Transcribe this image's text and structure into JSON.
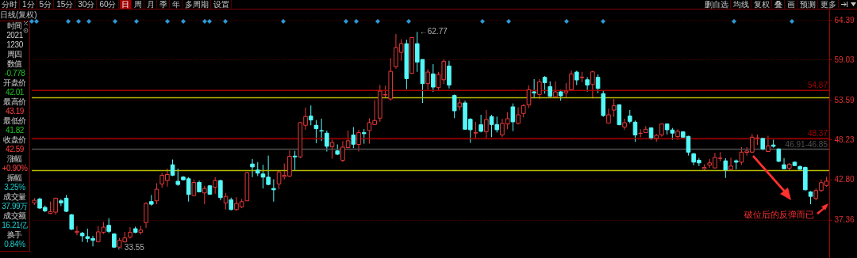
{
  "chart_data": {
    "type": "candlestick",
    "title": "日线(复权)",
    "annotations": [
      "分时",
      "1分",
      "5分",
      "15分",
      "30分",
      "60分",
      "日",
      "周",
      "月",
      "季",
      "年",
      "多周期",
      "设置",
      "删自选",
      "均线",
      "复权",
      "叠",
      "画",
      "预测",
      "更多",
      "时间",
      "2021",
      "1230",
      "周四",
      "数值",
      "-0.778",
      "开盘价",
      "42.01",
      "最高价",
      "43.19",
      "最低价",
      "41.82",
      "收盘价",
      "42.59",
      "涨幅",
      "+0.90%",
      "振幅",
      "3.25%",
      "成交量",
      "37.99万",
      "成交额",
      "16.21亿",
      "换手",
      "0.84%",
      "破位后的反弹而已",
      "←62.77",
      "←33.55"
    ],
    "categories": [
      null,
      null,
      null,
      null,
      null,
      null,
      null,
      null,
      null,
      null,
      null,
      null,
      null,
      null,
      null,
      null,
      null,
      null,
      null,
      null,
      null,
      null,
      null,
      null,
      null,
      null,
      null,
      null,
      null,
      null,
      null,
      null,
      null,
      null,
      null,
      null,
      null,
      null,
      null,
      null,
      null,
      null,
      null,
      null,
      null,
      null,
      null,
      null,
      null,
      null,
      null,
      null,
      null,
      null,
      null,
      null,
      null,
      null,
      null,
      null,
      null,
      null,
      null,
      null,
      null,
      null,
      null,
      null,
      null,
      null,
      null,
      null,
      null,
      null,
      null,
      null,
      null,
      null,
      null,
      null,
      null,
      null,
      null,
      null,
      null,
      null,
      null,
      null,
      null,
      null,
      null,
      null,
      null,
      null,
      null,
      null,
      null,
      null,
      null,
      null,
      null,
      null,
      null,
      null,
      null,
      null,
      null,
      null,
      null,
      null,
      null,
      null,
      null,
      null,
      null,
      null,
      null,
      null,
      null,
      null,
      null,
      null,
      null,
      null,
      null,
      null,
      null,
      null,
      null,
      null,
      null,
      null,
      null,
      null,
      null,
      null,
      null,
      null,
      null,
      null,
      null,
      null,
      null,
      null,
      null,
      null,
      null,
      null,
      null,
      null
    ],
    "ohlc": [
      [
        39.65,
        40.29,
        39.36,
        40.0
      ],
      [
        40.18,
        40.36,
        38.86,
        38.94
      ],
      [
        39.04,
        39.29,
        38.4,
        38.58
      ],
      [
        38.22,
        39.83,
        38.15,
        38.47
      ],
      [
        38.4,
        40.36,
        38.05,
        40.29
      ],
      [
        39.93,
        40.18,
        39.22,
        39.65
      ],
      [
        40.29,
        40.72,
        38.4,
        38.51
      ],
      [
        38.05,
        38.15,
        35.98,
        36.09
      ],
      [
        35.66,
        36.52,
        35.27,
        35.8
      ],
      [
        35.55,
        35.73,
        34.38,
        35.2
      ],
      [
        35.09,
        36.16,
        34.31,
        34.84
      ],
      [
        34.84,
        35.2,
        33.77,
        34.59
      ],
      [
        34.38,
        36.52,
        34.38,
        35.73
      ],
      [
        35.66,
        37.08,
        35.45,
        36.37
      ],
      [
        36.62,
        37.58,
        35.55,
        35.8
      ],
      [
        35.45,
        35.55,
        33.55,
        33.67
      ],
      [
        33.67,
        34.91,
        33.6,
        34.59
      ],
      [
        34.38,
        35.73,
        34.31,
        34.91
      ],
      [
        35.02,
        36.37,
        34.84,
        35.66
      ],
      [
        36.16,
        36.44,
        35.55,
        35.66
      ],
      [
        35.66,
        36.52,
        35.38,
        35.98
      ],
      [
        36.98,
        39.72,
        36.27,
        39.58
      ],
      [
        39.83,
        40.72,
        39.29,
        39.47
      ],
      [
        39.93,
        42.32,
        39.47,
        41.5
      ],
      [
        42.21,
        43.74,
        41.71,
        43.39
      ],
      [
        42.67,
        44.28,
        41.86,
        43.49
      ],
      [
        44.81,
        45.52,
        43.28,
        43.39
      ],
      [
        42.57,
        44.28,
        41.96,
        42.14
      ],
      [
        43.14,
        43.28,
        42.67,
        42.78
      ],
      [
        42.92,
        43.14,
        39.83,
        40.79
      ],
      [
        40.64,
        42.78,
        40.54,
        42.42
      ],
      [
        42.42,
        42.67,
        41.07,
        41.14
      ],
      [
        41.0,
        41.96,
        39.47,
        41.6
      ],
      [
        41.96,
        42.06,
        40.78,
        40.82
      ],
      [
        41.78,
        43.13,
        40.89,
        42.67
      ],
      [
        42.67,
        42.78,
        40.0,
        40.36
      ],
      [
        39.64,
        41.0,
        38.75,
        40.53
      ],
      [
        40.07,
        40.36,
        38.65,
        38.75
      ],
      [
        38.75,
        40.43,
        38.58,
        39.57
      ],
      [
        39.11,
        40.18,
        38.93,
        39.82
      ],
      [
        39.93,
        43.84,
        39.93,
        43.74
      ],
      [
        44.91,
        45.59,
        43.13,
        44.52
      ],
      [
        44.09,
        45.16,
        43.28,
        43.67
      ],
      [
        43.56,
        44.81,
        41.6,
        43.13
      ],
      [
        43.13,
        46.05,
        42.03,
        42.14
      ],
      [
        41.6,
        42.85,
        39.82,
        41.42
      ],
      [
        42.21,
        43.99,
        41.5,
        43.84
      ],
      [
        43.2,
        44.98,
        42.85,
        43.38
      ],
      [
        43.28,
        46.76,
        43.13,
        45.95
      ],
      [
        45.98,
        46.69,
        44.09,
        45.87
      ],
      [
        45.87,
        50.6,
        45.7,
        50.5
      ],
      [
        50.15,
        52.53,
        49.54,
        51.32
      ],
      [
        51.39,
        52.82,
        50.15,
        50.86
      ],
      [
        50.15,
        50.86,
        47.73,
        49.68
      ],
      [
        49.43,
        51.04,
        48.01,
        49.36
      ],
      [
        49.08,
        49.43,
        46.59,
        47.3
      ],
      [
        47.23,
        48.19,
        45.62,
        47.83
      ],
      [
        46.69,
        47.55,
        46.12,
        46.23
      ],
      [
        45.41,
        48.01,
        45.16,
        47.19
      ],
      [
        47.12,
        49.43,
        47.05,
        48.05
      ],
      [
        48.83,
        49.9,
        47.05,
        47.58
      ],
      [
        47.55,
        49.54,
        46.59,
        49.15
      ],
      [
        49.15,
        49.61,
        47.65,
        49.01
      ],
      [
        49.43,
        51.11,
        47.65,
        50.5
      ],
      [
        50.25,
        53.53,
        50.22,
        50.79
      ],
      [
        51.11,
        55.59,
        50.61,
        54.77
      ],
      [
        54.24,
        55.49,
        53.81,
        54.31
      ],
      [
        53.71,
        59.22,
        53.46,
        57.44
      ],
      [
        58.05,
        62.5,
        57.8,
        60.65
      ],
      [
        60.01,
        61.79,
        58.87,
        61.18
      ],
      [
        61.18,
        61.72,
        55.02,
        56.45
      ],
      [
        57.16,
        62.0,
        57.09,
        62.0
      ],
      [
        61.18,
        62.77,
        57.37,
        58.69
      ],
      [
        59.05,
        59.05,
        53.17,
        55.77
      ],
      [
        55.77,
        57.73,
        54.95,
        57.34
      ],
      [
        57.09,
        58.41,
        54.67,
        55.31
      ],
      [
        55.24,
        57.37,
        54.77,
        57.02
      ],
      [
        56.3,
        59.05,
        55.74,
        58.8
      ],
      [
        58.16,
        58.87,
        55.13,
        55.59
      ],
      [
        54.17,
        54.31,
        51.11,
        52.1
      ],
      [
        52.64,
        53.71,
        52.18,
        53.17
      ],
      [
        53.17,
        53.46,
        49.54,
        49.61
      ],
      [
        50.96,
        51.11,
        47.76,
        49.54
      ],
      [
        49.08,
        50.61,
        48.37,
        49.18
      ],
      [
        50.22,
        51.57,
        49.18,
        49.33
      ],
      [
        49.26,
        52.21,
        48.29,
        50.93
      ],
      [
        51.32,
        51.57,
        48.54,
        50.25
      ],
      [
        50.25,
        51.32,
        49.18,
        49.54
      ],
      [
        48.83,
        51.04,
        48.54,
        50.4
      ],
      [
        50.32,
        51.93,
        49.61,
        51.04
      ],
      [
        52.64,
        53.1,
        49.36,
        50.61
      ],
      [
        50.4,
        52.57,
        50.25,
        51.57
      ],
      [
        51.75,
        52.99,
        51.21,
        52.82
      ],
      [
        52.89,
        55.56,
        52.46,
        54.95
      ],
      [
        54.67,
        56.38,
        53.81,
        54.52
      ],
      [
        54.31,
        56.38,
        53.71,
        56.02
      ],
      [
        56.63,
        56.8,
        54.42,
        55.91
      ],
      [
        55.38,
        56.09,
        53.96,
        54.06
      ],
      [
        53.99,
        56.09,
        53.88,
        54.67
      ],
      [
        54.67,
        54.95,
        53.46,
        54.13
      ],
      [
        54.52,
        55.84,
        53.96,
        54.77
      ],
      [
        54.95,
        57.55,
        54.88,
        57.09
      ],
      [
        57.34,
        57.52,
        55.59,
        56.27
      ],
      [
        56.59,
        57.37,
        55.95,
        56.66
      ],
      [
        56.3,
        56.66,
        54.7,
        55.59
      ],
      [
        55.66,
        57.52,
        53.78,
        57.37
      ],
      [
        56.63,
        57.02,
        54.49,
        55.13
      ],
      [
        54.42,
        54.77,
        51.29,
        51.46
      ],
      [
        50.43,
        52.39,
        50.43,
        51.57
      ],
      [
        52.21,
        53.71,
        51.29,
        52.82
      ],
      [
        52.92,
        52.99,
        50.15,
        50.22
      ],
      [
        49.9,
        51.04,
        49.54,
        50.5
      ],
      [
        51.39,
        52.21,
        50.4,
        50.68
      ],
      [
        50.57,
        50.79,
        47.9,
        48.83
      ],
      [
        49.04,
        49.61,
        48.54,
        49.08
      ],
      [
        49.15,
        50.04,
        49.15,
        49.61
      ],
      [
        49.79,
        49.79,
        48.19,
        48.44
      ],
      [
        48.37,
        48.97,
        47.94,
        48.79
      ],
      [
        48.83,
        50.4,
        48.62,
        50.32
      ],
      [
        50.32,
        50.4,
        48.9,
        49.54
      ],
      [
        49.51,
        49.79,
        48.19,
        49.08
      ],
      [
        48.62,
        49.61,
        48.19,
        49.33
      ],
      [
        49.26,
        49.33,
        48.44,
        48.54
      ],
      [
        48.65,
        48.72,
        46.05,
        46.51
      ],
      [
        46.3,
        46.41,
        44.73,
        45.16
      ],
      [
        45.41,
        45.7,
        44.63,
        45.06
      ],
      [
        44.27,
        44.88,
        44.09,
        44.45
      ],
      [
        44.77,
        45.59,
        44.38,
        45.06
      ],
      [
        44.38,
        46.41,
        44.34,
        45.8
      ],
      [
        45.66,
        46.51,
        45.27,
        45.7
      ],
      [
        45.34,
        45.7,
        43.03,
        44.09
      ],
      [
        44.17,
        45.77,
        44.09,
        44.63
      ],
      [
        45.34,
        45.52,
        44.2,
        45.16
      ],
      [
        45.16,
        47.19,
        44.81,
        46.51
      ],
      [
        46.48,
        47.19,
        46.05,
        46.66
      ],
      [
        46.51,
        48.97,
        46.41,
        48.54
      ],
      [
        48.4,
        48.9,
        47.48,
        48.44
      ],
      [
        48.37,
        48.47,
        46.76,
        46.94
      ],
      [
        46.59,
        48.72,
        46.59,
        47.37
      ],
      [
        47.48,
        48.19,
        47.12,
        47.3
      ],
      [
        46.94,
        47.01,
        45.16,
        45.27
      ],
      [
        44.81,
        45.7,
        44.2,
        44.27
      ],
      [
        44.34,
        45.06,
        43.99,
        44.88
      ],
      [
        45.16,
        45.23,
        44.63,
        44.7
      ],
      [
        44.56,
        44.73,
        44.09,
        44.2
      ],
      [
        44.45,
        44.56,
        41.35,
        41.42
      ],
      [
        41.14,
        41.25,
        39.47,
        40.53
      ],
      [
        40.25,
        41.6,
        40.0,
        41.32
      ],
      [
        41.32,
        42.78,
        41.14,
        42.39
      ],
      [
        42.01,
        43.19,
        41.82,
        42.59
      ]
    ],
    "colors": [
      "#e83a3a",
      "#54f8f8",
      "#54f8f8",
      "#e83a3a",
      "#e83a3a",
      "#54f8f8",
      "#54f8f8",
      "#54f8f8",
      "#e83a3a",
      "#54f8f8",
      "#54f8f8",
      "#54f8f8",
      "#e83a3a",
      "#e83a3a",
      "#54f8f8",
      "#54f8f8",
      "#e83a3a",
      "#e83a3a",
      "#e83a3a",
      "#54f8f8",
      "#e83a3a",
      "#e83a3a",
      "#54f8f8",
      "#e83a3a",
      "#e83a3a",
      "#e83a3a",
      "#54f8f8",
      "#54f8f8",
      "#54f8f8",
      "#54f8f8",
      "#e83a3a",
      "#54f8f8",
      "#e83a3a",
      "#54f8f8",
      "#e83a3a",
      "#54f8f8",
      "#e83a3a",
      "#54f8f8",
      "#e83a3a",
      "#e83a3a",
      "#e83a3a",
      "#54f8f8",
      "#54f8f8",
      "#54f8f8",
      "#54f8f8",
      "#54f8f8",
      "#e83a3a",
      "#e83a3a",
      "#e83a3a",
      "#54f8f8",
      "#e83a3a",
      "#e83a3a",
      "#54f8f8",
      "#54f8f8",
      "#54f8f8",
      "#54f8f8",
      "#e83a3a",
      "#54f8f8",
      "#e83a3a",
      "#e83a3a",
      "#54f8f8",
      "#e83a3a",
      "#54f8f8",
      "#e83a3a",
      "#e83a3a",
      "#e83a3a",
      "#e83a3a",
      "#e83a3a",
      "#e83a3a",
      "#e83a3a",
      "#54f8f8",
      "#e83a3a",
      "#54f8f8",
      "#54f8f8",
      "#e83a3a",
      "#54f8f8",
      "#e83a3a",
      "#e83a3a",
      "#54f8f8",
      "#54f8f8",
      "#e83a3a",
      "#54f8f8",
      "#54f8f8",
      "#e83a3a",
      "#54f8f8",
      "#e83a3a",
      "#54f8f8",
      "#54f8f8",
      "#e83a3a",
      "#e83a3a",
      "#54f8f8",
      "#e83a3a",
      "#e83a3a",
      "#e83a3a",
      "#54f8f8",
      "#e83a3a",
      "#54f8f8",
      "#54f8f8",
      "#e83a3a",
      "#54f8f8",
      "#e83a3a",
      "#e83a3a",
      "#54f8f8",
      "#e83a3a",
      "#54f8f8",
      "#e83a3a",
      "#54f8f8",
      "#54f8f8",
      "#e83a3a",
      "#e83a3a",
      "#54f8f8",
      "#e83a3a",
      "#54f8f8",
      "#54f8f8",
      "#e83a3a",
      "#e83a3a",
      "#54f8f8",
      "#e83a3a",
      "#e83a3a",
      "#54f8f8",
      "#54f8f8",
      "#e83a3a",
      "#54f8f8",
      "#54f8f8",
      "#54f8f8",
      "#54f8f8",
      "#e83a3a",
      "#e83a3a",
      "#e83a3a",
      "#e83a3a",
      "#54f8f8",
      "#e83a3a",
      "#54f8f8",
      "#e83a3a",
      "#e83a3a",
      "#e83a3a",
      "#e83a3a",
      "#54f8f8",
      "#e83a3a",
      "#54f8f8",
      "#54f8f8",
      "#54f8f8",
      "#e83a3a",
      "#54f8f8",
      "#54f8f8",
      "#54f8f8",
      "#54f8f8",
      "#e83a3a",
      "#e83a3a",
      "#e83a3a"
    ],
    "ylim": [
      32.2,
      65.8
    ],
    "yticks": [
      64.39,
      59.03,
      53.59,
      48.23,
      {
        "value": 42.8,
        "label": "42.80"
      },
      37.36
    ],
    "grid": "y",
    "tick_labels": "y",
    "ref_lines": [
      {
        "axis": "y",
        "value": 54.87,
        "label": "54.87",
        "color": "#a00000"
      },
      {
        "axis": "y",
        "value": 53.88,
        "color": "#b8b800"
      },
      {
        "axis": "y",
        "value": 48.37,
        "label": "48.37",
        "color": "#a00000"
      },
      {
        "axis": "y",
        "value": 46.91,
        "label": "46.91-46.85",
        "color": "#505050"
      },
      {
        "axis": "y",
        "value": 44.02,
        "color": "#b8b800"
      }
    ]
  }
}
